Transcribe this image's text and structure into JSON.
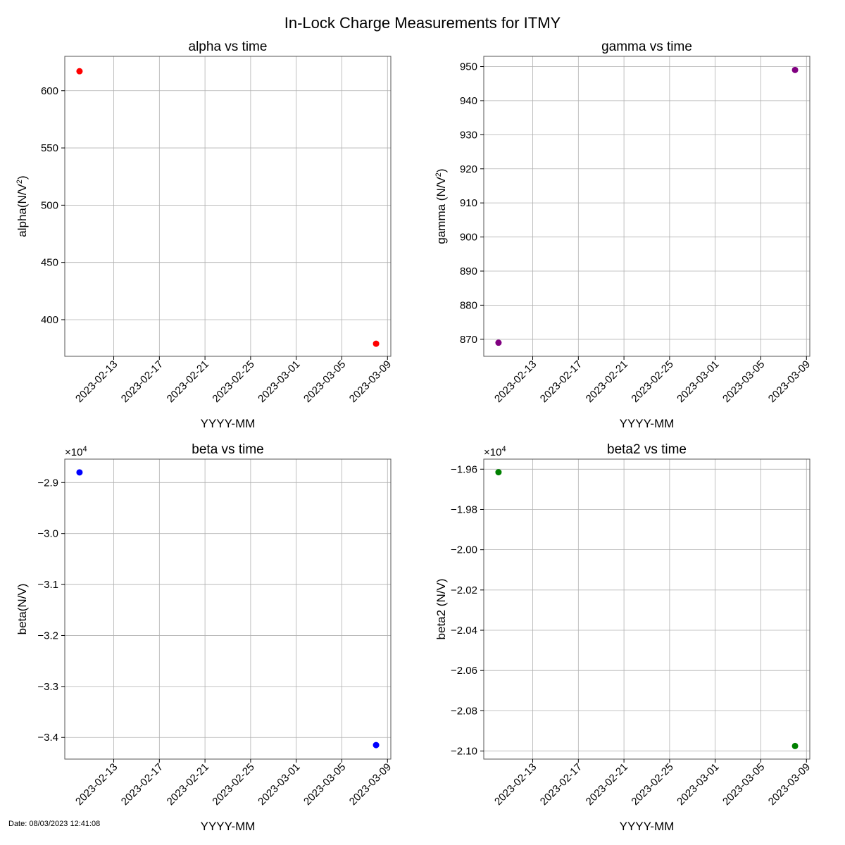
{
  "figure_title": "In-Lock Charge Measurements for ITMY",
  "footer": "Date: 08/03/2023 12:41:08",
  "chart_data": [
    {
      "type": "scatter",
      "title": "alpha vs time",
      "xlabel": "YYYY-MM",
      "ylabel_main": "alpha(N/V",
      "ylabel_sup": "2",
      "ylabel_end": ")",
      "color": "#ff0000",
      "x": [
        "2023-02-10",
        "2023-03-08"
      ],
      "y": [
        617,
        379
      ],
      "xlim": [
        "2023-02-08 17:00",
        "2023-03-09 07:00"
      ],
      "ylim": [
        368,
        630
      ],
      "yticks": [
        400,
        450,
        500,
        550,
        600
      ],
      "ytick_labels": [
        "400",
        "450",
        "500",
        "550",
        "600"
      ],
      "offset_text": "",
      "xticks": [
        "2023-02-13",
        "2023-02-17",
        "2023-02-21",
        "2023-02-25",
        "2023-03-01",
        "2023-03-05",
        "2023-03-09"
      ],
      "grid": true
    },
    {
      "type": "scatter",
      "title": "gamma vs time",
      "xlabel": "YYYY-MM",
      "ylabel_main": "gamma (N/V",
      "ylabel_sup": "2",
      "ylabel_end": ")",
      "color": "#800080",
      "x": [
        "2023-02-10",
        "2023-03-08"
      ],
      "y": [
        869,
        949
      ],
      "xlim": [
        "2023-02-08 17:00",
        "2023-03-09 07:00"
      ],
      "ylim": [
        865,
        953
      ],
      "yticks": [
        870,
        880,
        890,
        900,
        910,
        920,
        930,
        940,
        950
      ],
      "ytick_labels": [
        "870",
        "880",
        "890",
        "900",
        "910",
        "920",
        "930",
        "940",
        "950"
      ],
      "offset_text": "",
      "xticks": [
        "2023-02-13",
        "2023-02-17",
        "2023-02-21",
        "2023-02-25",
        "2023-03-01",
        "2023-03-05",
        "2023-03-09"
      ],
      "grid": true
    },
    {
      "type": "scatter",
      "title": "beta vs time",
      "xlabel": "YYYY-MM",
      "ylabel_main": "beta(N/V)",
      "ylabel_sup": "",
      "ylabel_end": "",
      "color": "#0000ff",
      "x": [
        "2023-02-10",
        "2023-03-08"
      ],
      "y": [
        -28800,
        -34150
      ],
      "xlim": [
        "2023-02-08 17:00",
        "2023-03-09 07:00"
      ],
      "ylim": [
        -34425,
        -28540
      ],
      "yticks": [
        -34000,
        -33000,
        -32000,
        -31000,
        -30000,
        -29000
      ],
      "ytick_labels": [
        "−3.4",
        "−3.3",
        "−3.2",
        "−3.1",
        "−3.0",
        "−2.9"
      ],
      "offset_text": "×10",
      "offset_exp": "4",
      "xticks": [
        "2023-02-13",
        "2023-02-17",
        "2023-02-21",
        "2023-02-25",
        "2023-03-01",
        "2023-03-05",
        "2023-03-09"
      ],
      "grid": true
    },
    {
      "type": "scatter",
      "title": "beta2 vs time",
      "xlabel": "YYYY-MM",
      "ylabel_main": "beta2 (N/V)",
      "ylabel_sup": "",
      "ylabel_end": "",
      "color": "#008000",
      "x": [
        "2023-02-10",
        "2023-03-08"
      ],
      "y": [
        -19615,
        -20975
      ],
      "xlim": [
        "2023-02-08 17:00",
        "2023-03-09 07:00"
      ],
      "ylim": [
        -21040,
        -19550
      ],
      "yticks": [
        -21000,
        -20800,
        -20600,
        -20400,
        -20200,
        -20000,
        -19800,
        -19600
      ],
      "ytick_labels": [
        "−2.10",
        "−2.08",
        "−2.06",
        "−2.04",
        "−2.02",
        "−2.00",
        "−1.98",
        "−1.96"
      ],
      "offset_text": "×10",
      "offset_exp": "4",
      "xticks": [
        "2023-02-13",
        "2023-02-17",
        "2023-02-21",
        "2023-02-25",
        "2023-03-01",
        "2023-03-05",
        "2023-03-09"
      ],
      "grid": true
    }
  ]
}
